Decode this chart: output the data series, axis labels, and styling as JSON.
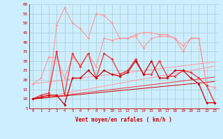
{
  "xlabel": "Vent moyen/en rafales ( km/h )",
  "x": [
    0,
    1,
    2,
    3,
    4,
    5,
    6,
    7,
    8,
    9,
    10,
    11,
    12,
    13,
    14,
    15,
    16,
    17,
    18,
    19,
    20,
    21,
    22,
    23
  ],
  "light_pink_upper": [
    10,
    12,
    13,
    49,
    58,
    50,
    47,
    42,
    55,
    54,
    50,
    42,
    42,
    44,
    45,
    45,
    44,
    44,
    42,
    38,
    42,
    42,
    17,
    8
  ],
  "light_pink_lower": [
    18,
    21,
    32,
    32,
    21,
    32,
    28,
    34,
    27,
    42,
    41,
    42,
    42,
    43,
    37,
    42,
    43,
    43,
    42,
    35,
    42,
    42,
    17,
    16
  ],
  "dark_red_upper": [
    10,
    12,
    13,
    35,
    12,
    34,
    27,
    34,
    21,
    34,
    31,
    23,
    25,
    31,
    23,
    23,
    30,
    22,
    22,
    25,
    24,
    21,
    17,
    8
  ],
  "dark_red_lower": [
    10,
    11,
    12,
    12,
    7,
    21,
    21,
    25,
    21,
    25,
    23,
    22,
    24,
    30,
    23,
    30,
    21,
    21,
    25,
    25,
    21,
    18,
    8,
    8
  ],
  "trend_light1": [
    18,
    18.5,
    19,
    19.5,
    20,
    20.5,
    21,
    21.5,
    22,
    22.5,
    23,
    23.5,
    24,
    24.5,
    25,
    25.5,
    26,
    26.5,
    27,
    27.5,
    28,
    28.5,
    29,
    29.5
  ],
  "trend_light2": [
    10,
    10.8,
    11.5,
    12.3,
    13,
    13.8,
    14.5,
    15.3,
    16,
    16.8,
    17.5,
    18.3,
    19,
    19.8,
    20.5,
    21.3,
    22,
    22.8,
    23.5,
    24.3,
    25,
    25.8,
    26.5,
    27.3
  ],
  "trend_dark1": [
    10,
    10.5,
    11,
    11.5,
    12,
    12.5,
    13,
    13.5,
    14,
    14.5,
    15,
    15.5,
    16,
    16.5,
    17,
    17.5,
    18,
    18.5,
    19,
    19.5,
    20,
    20.5,
    21,
    21.5
  ],
  "trend_dark2": [
    10,
    10.4,
    10.8,
    11.2,
    11.6,
    12,
    12.4,
    12.8,
    13.2,
    13.6,
    14,
    14.4,
    14.8,
    15.2,
    15.6,
    16,
    16.4,
    16.8,
    17.2,
    17.6,
    18,
    18.4,
    18.8,
    19.2
  ],
  "bg_color": "#cceeff",
  "grid_color": "#aacccc",
  "dark_red": "#cc0000",
  "light_red": "#ff9999",
  "medium_red": "#ee3333",
  "ylim": [
    5,
    60
  ],
  "xlim": [
    -0.5,
    23.5
  ],
  "yticks": [
    5,
    10,
    15,
    20,
    25,
    30,
    35,
    40,
    45,
    50,
    55,
    60
  ]
}
